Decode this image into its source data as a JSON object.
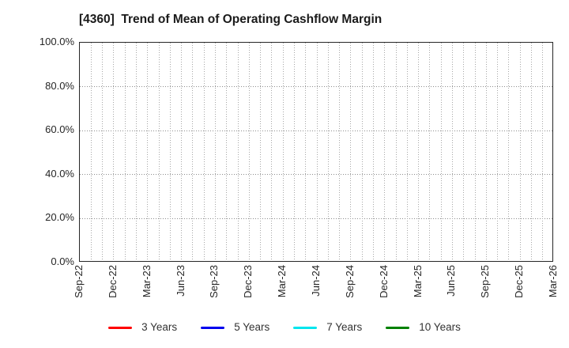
{
  "chart_data": {
    "type": "line",
    "title": "[4360]  Trend of Mean of Operating Cashflow Margin",
    "title_color": "#1a1a1a",
    "categories": [
      "Sep-22",
      "Dec-22",
      "Mar-23",
      "Jun-23",
      "Sep-23",
      "Dec-23",
      "Mar-24",
      "Jun-24",
      "Sep-24",
      "Dec-24",
      "Mar-25",
      "Jun-25",
      "Sep-25",
      "Dec-25",
      "Mar-26"
    ],
    "y_tick_labels": [
      "100.0%",
      "80.0%",
      "60.0%",
      "40.0%",
      "20.0%",
      "0.0%"
    ],
    "ylim": [
      0,
      100
    ],
    "xlabel": "",
    "ylabel": "",
    "grid": "dotted",
    "minor_x_divisions_per_category": 3,
    "legend_position": "bottom",
    "series": [
      {
        "name": "3 Years",
        "color": "#ff0000",
        "values": []
      },
      {
        "name": "5 Years",
        "color": "#0000ee",
        "values": []
      },
      {
        "name": "7 Years",
        "color": "#00e5ee",
        "values": []
      },
      {
        "name": "10 Years",
        "color": "#008000",
        "values": []
      }
    ]
  }
}
